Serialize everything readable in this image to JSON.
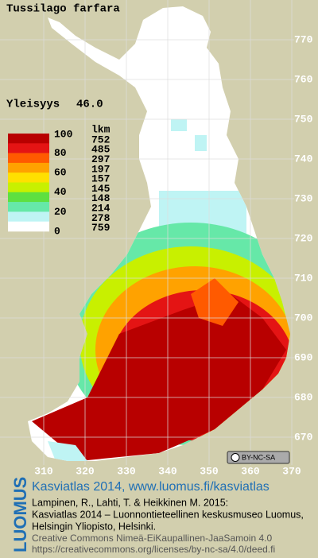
{
  "title": "Tussilago farfara",
  "frequency": {
    "label": "Yleisyys",
    "value": "46.0"
  },
  "legend": {
    "scale_labels": [
      100,
      80,
      60,
      40,
      20,
      0
    ],
    "count_header": "lkm",
    "counts": [
      752,
      485,
      297,
      197,
      157,
      145,
      148,
      214,
      278,
      759
    ],
    "colors": [
      "#b80000",
      "#e41414",
      "#ff5a00",
      "#ffa200",
      "#ffe000",
      "#c8f000",
      "#5ee040",
      "#66e8a8",
      "#bff4f4",
      "#ffffff"
    ]
  },
  "grid": {
    "northing": [
      770,
      760,
      750,
      740,
      730,
      720,
      710,
      700,
      690,
      680,
      670
    ],
    "easting": [
      310,
      320,
      330,
      340,
      350,
      360,
      370
    ]
  },
  "license_badge": "BY-NC-SA",
  "footer": {
    "brand": "LUOMUS",
    "headline": "Kasviatlas 2014, www.luomus.fi/kasviatlas",
    "citation": [
      "Lampinen, R., Lahti, T. & Heikkinen M. 2015:",
      "Kasviatlas 2014 – Luonnontieteellinen keskusmuseo Luomus,",
      "Helsingin Yliopisto, Helsinki."
    ],
    "license": [
      "Creative Commons Nimeä-EiKaupallinen-JaaSamoin 4.0",
      "https://creativecommons.org/licenses/by-nc-sa/4.0/deed.fi"
    ]
  }
}
